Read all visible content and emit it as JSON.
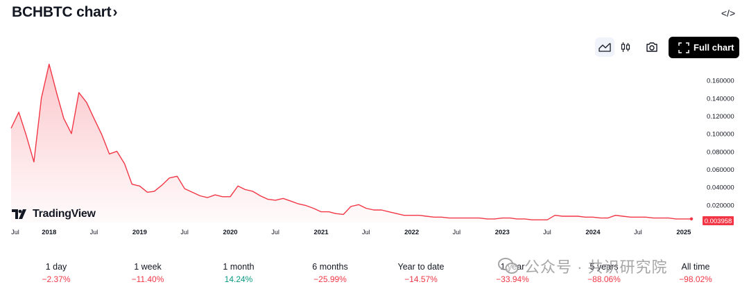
{
  "header": {
    "title": "BCHBTC chart",
    "title_chevron": "›",
    "embed_icon": "</>"
  },
  "toolbar": {
    "full_chart_label": "Full chart",
    "icons": [
      "area-chart-icon",
      "candles-icon",
      "camera-icon",
      "fullscreen-icon",
      "embed-code-icon"
    ]
  },
  "branding": {
    "logo_text": "TradingView"
  },
  "colors": {
    "line": "#f23645",
    "negative": "#f23645",
    "positive": "#089981",
    "button_bg": "#000000"
  },
  "chart_data": {
    "type": "area",
    "symbol": "BCHBTC",
    "ylim": [
      0,
      0.18
    ],
    "y_ticks": [
      "0.160000",
      "0.140000",
      "0.120000",
      "0.100000",
      "0.080000",
      "0.060000",
      "0.040000",
      "0.020000"
    ],
    "x_ticks": [
      "Jul",
      "2018",
      "Jul",
      "2019",
      "Jul",
      "2020",
      "Jul",
      "2021",
      "Jul",
      "2022",
      "Jul",
      "2023",
      "Jul",
      "2024",
      "Jul",
      "2025"
    ],
    "last_value_label": "0.003958",
    "series": [
      {
        "x": [
          "2017-08",
          "2017-09",
          "2017-10",
          "2017-11",
          "2017-12",
          "2018-01",
          "2018-02",
          "2018-03",
          "2018-04",
          "2018-05",
          "2018-06",
          "2018-07",
          "2018-08",
          "2018-09",
          "2018-10",
          "2018-11",
          "2018-12",
          "2019-01",
          "2019-02",
          "2019-03",
          "2019-04",
          "2019-05",
          "2019-06",
          "2019-07",
          "2019-08",
          "2019-09",
          "2019-10",
          "2019-11",
          "2019-12",
          "2020-01",
          "2020-02",
          "2020-03",
          "2020-04",
          "2020-05",
          "2020-06",
          "2020-07",
          "2020-08",
          "2020-09",
          "2020-10",
          "2020-11",
          "2020-12",
          "2021-01",
          "2021-02",
          "2021-03",
          "2021-04",
          "2021-05",
          "2021-06",
          "2021-07",
          "2021-08",
          "2021-09",
          "2021-10",
          "2021-11",
          "2021-12",
          "2022-01",
          "2022-02",
          "2022-03",
          "2022-04",
          "2022-05",
          "2022-06",
          "2022-07",
          "2022-08",
          "2022-09",
          "2022-10",
          "2022-11",
          "2022-12",
          "2023-01",
          "2023-02",
          "2023-03",
          "2023-04",
          "2023-05",
          "2023-06",
          "2023-07",
          "2023-08",
          "2023-09",
          "2023-10",
          "2023-11",
          "2023-12",
          "2024-01",
          "2024-02",
          "2024-03",
          "2024-04",
          "2024-05",
          "2024-06",
          "2024-07",
          "2024-08",
          "2024-09",
          "2024-10",
          "2024-11",
          "2024-12",
          "2025-01",
          "2025-02"
        ],
        "values": [
          0.106,
          0.124,
          0.098,
          0.068,
          0.14,
          0.178,
          0.145,
          0.117,
          0.1,
          0.146,
          0.135,
          0.117,
          0.099,
          0.077,
          0.08,
          0.066,
          0.043,
          0.041,
          0.034,
          0.035,
          0.042,
          0.05,
          0.052,
          0.038,
          0.034,
          0.03,
          0.028,
          0.031,
          0.029,
          0.029,
          0.041,
          0.037,
          0.035,
          0.03,
          0.026,
          0.025,
          0.027,
          0.024,
          0.021,
          0.019,
          0.016,
          0.012,
          0.012,
          0.01,
          0.009,
          0.018,
          0.02,
          0.016,
          0.014,
          0.014,
          0.012,
          0.01,
          0.008,
          0.008,
          0.008,
          0.007,
          0.006,
          0.006,
          0.005,
          0.005,
          0.005,
          0.005,
          0.005,
          0.004,
          0.004,
          0.005,
          0.005,
          0.004,
          0.004,
          0.003,
          0.003,
          0.003,
          0.008,
          0.007,
          0.007,
          0.007,
          0.006,
          0.006,
          0.005,
          0.005,
          0.008,
          0.007,
          0.006,
          0.006,
          0.006,
          0.005,
          0.005,
          0.005,
          0.004,
          0.004,
          0.004
        ]
      }
    ]
  },
  "performance": [
    {
      "label": "1 day",
      "change": "−2.37%",
      "sign": "neg"
    },
    {
      "label": "1 week",
      "change": "−11.40%",
      "sign": "neg"
    },
    {
      "label": "1 month",
      "change": "14.24%",
      "sign": "pos"
    },
    {
      "label": "6 months",
      "change": "−25.99%",
      "sign": "neg"
    },
    {
      "label": "Year to date",
      "change": "−14.57%",
      "sign": "neg"
    },
    {
      "label": "1 year",
      "change": "−33.94%",
      "sign": "neg"
    },
    {
      "label": "5 years",
      "change": "−88.06%",
      "sign": "neg"
    },
    {
      "label": "All time",
      "change": "−98.02%",
      "sign": "neg"
    }
  ],
  "watermark": {
    "text": "公众号 · 共识研究院"
  }
}
